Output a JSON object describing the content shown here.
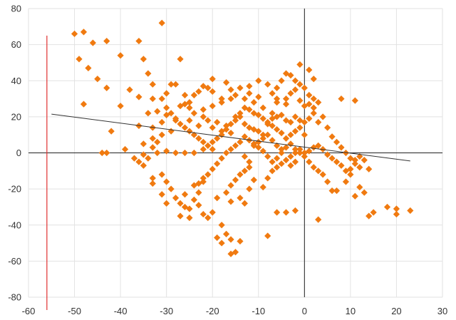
{
  "chart_data": {
    "type": "scatter",
    "title": "",
    "xlabel": "",
    "ylabel": "",
    "xlim": [
      -60,
      30
    ],
    "ylim": [
      -80,
      80
    ],
    "x_ticks": [
      -60,
      -50,
      -40,
      -30,
      -20,
      -10,
      0,
      10,
      20,
      30
    ],
    "y_ticks": [
      -80,
      -60,
      -40,
      -20,
      0,
      20,
      40,
      60,
      80
    ],
    "grid": true,
    "legend": "none",
    "colors": {
      "marker": "#F07A10",
      "trendline": "#333333",
      "axis": "#222222",
      "vertical_line": "#E03030",
      "grid": "#E2E2E2"
    },
    "vertical_line_x": -56,
    "trendline": {
      "x": [
        -55,
        23
      ],
      "y": [
        21.5,
        -4.5
      ]
    },
    "series": [
      {
        "marker": "diamond",
        "points": [
          [
            -50,
            66
          ],
          [
            -48,
            67
          ],
          [
            -46,
            61
          ],
          [
            -49,
            52
          ],
          [
            -47,
            47
          ],
          [
            -45,
            41
          ],
          [
            -43,
            62
          ],
          [
            -43,
            36
          ],
          [
            -48,
            27
          ],
          [
            -40,
            54
          ],
          [
            -36,
            62
          ],
          [
            -35,
            52
          ],
          [
            -33,
            38
          ],
          [
            -34,
            44
          ],
          [
            -31,
            72
          ],
          [
            -27,
            52
          ],
          [
            -38,
            35
          ],
          [
            -36,
            31
          ],
          [
            -33,
            30
          ],
          [
            -40,
            26
          ],
          [
            -42,
            12
          ],
          [
            -39,
            2
          ],
          [
            -37,
            -3
          ],
          [
            -44,
            0
          ],
          [
            -43,
            0
          ],
          [
            -36,
            15
          ],
          [
            -34,
            22
          ],
          [
            -33,
            14
          ],
          [
            -30,
            25
          ],
          [
            -32,
            23
          ],
          [
            -31,
            30
          ],
          [
            -29,
            38
          ],
          [
            -28,
            38
          ],
          [
            -30,
            33
          ],
          [
            -26,
            32
          ],
          [
            -25,
            25
          ],
          [
            -28,
            18
          ],
          [
            -29,
            12
          ],
          [
            -31,
            10
          ],
          [
            -33,
            8
          ],
          [
            -35,
            5
          ],
          [
            -32,
            0
          ],
          [
            -30,
            1
          ],
          [
            -28,
            0
          ],
          [
            -26,
            0
          ],
          [
            -24,
            0
          ],
          [
            -22,
            2
          ],
          [
            -20,
            2
          ],
          [
            -35,
            -7
          ],
          [
            -33,
            -14
          ],
          [
            -33,
            -17
          ],
          [
            -31,
            -12
          ],
          [
            -30,
            -16
          ],
          [
            -29,
            -20
          ],
          [
            -28,
            -25
          ],
          [
            -27,
            -28
          ],
          [
            -26,
            -30
          ],
          [
            -27,
            -35
          ],
          [
            -25,
            -36
          ],
          [
            -26,
            -23
          ],
          [
            -24,
            -18
          ],
          [
            -23,
            -22
          ],
          [
            -22,
            -16
          ],
          [
            -30,
            -28
          ],
          [
            -31,
            -23
          ],
          [
            -25,
            18
          ],
          [
            -23,
            15
          ],
          [
            -22,
            20
          ],
          [
            -21,
            18
          ],
          [
            -20,
            14
          ],
          [
            -19,
            17
          ],
          [
            -18,
            12
          ],
          [
            -17,
            15
          ],
          [
            -16,
            11
          ],
          [
            -15,
            18
          ],
          [
            -14,
            20
          ],
          [
            -13,
            16
          ],
          [
            -12,
            14
          ],
          [
            -11,
            13
          ],
          [
            -10,
            12
          ],
          [
            -9,
            10
          ],
          [
            -8,
            16
          ],
          [
            -7,
            19
          ],
          [
            -6,
            20
          ],
          [
            -5,
            21
          ],
          [
            -4,
            18
          ],
          [
            -3,
            17
          ],
          [
            -2,
            20
          ],
          [
            -1,
            18
          ],
          [
            0,
            17
          ],
          [
            1,
            19
          ],
          [
            2,
            25
          ],
          [
            3,
            28
          ],
          [
            1,
            32
          ],
          [
            0,
            36
          ],
          [
            -1,
            38
          ],
          [
            -2,
            40
          ],
          [
            -3,
            43
          ],
          [
            -4,
            44
          ],
          [
            -5,
            40
          ],
          [
            -6,
            36
          ],
          [
            -7,
            33
          ],
          [
            -8,
            38
          ],
          [
            -10,
            40
          ],
          [
            -12,
            37
          ],
          [
            -14,
            36
          ],
          [
            -16,
            35
          ],
          [
            -18,
            30
          ],
          [
            -20,
            34
          ],
          [
            -21,
            36
          ],
          [
            -22,
            37
          ],
          [
            -23,
            34
          ],
          [
            -24,
            32
          ],
          [
            -25,
            28
          ],
          [
            -26,
            27
          ],
          [
            -27,
            26
          ],
          [
            -20,
            41
          ],
          [
            -17,
            39
          ],
          [
            -15,
            32
          ],
          [
            -13,
            30
          ],
          [
            -11,
            28
          ],
          [
            -9,
            25
          ],
          [
            -7,
            22
          ],
          [
            -6,
            30
          ],
          [
            -4,
            27
          ],
          [
            -3,
            33
          ],
          [
            -1,
            29
          ],
          [
            0,
            26
          ],
          [
            1,
            27
          ],
          [
            2,
            30
          ],
          [
            2,
            22
          ],
          [
            3,
            17
          ],
          [
            4,
            20
          ],
          [
            5,
            14
          ],
          [
            6,
            9
          ],
          [
            7,
            6
          ],
          [
            8,
            3
          ],
          [
            9,
            0
          ],
          [
            10,
            -3
          ],
          [
            11,
            -6
          ],
          [
            12,
            -8
          ],
          [
            13,
            -4
          ],
          [
            14,
            -9
          ],
          [
            15,
            -33
          ],
          [
            14,
            -35
          ],
          [
            18,
            -30
          ],
          [
            20,
            -31
          ],
          [
            20,
            -34
          ],
          [
            23,
            -32
          ],
          [
            11,
            -24
          ],
          [
            12,
            -19
          ],
          [
            13,
            -22
          ],
          [
            6,
            -21
          ],
          [
            5,
            -16
          ],
          [
            4,
            -12
          ],
          [
            3,
            -10
          ],
          [
            2,
            -8
          ],
          [
            1,
            -5
          ],
          [
            0,
            -2
          ],
          [
            -1,
            0
          ],
          [
            -2,
            2
          ],
          [
            -3,
            5
          ],
          [
            -4,
            3
          ],
          [
            -5,
            0
          ],
          [
            -6,
            -3
          ],
          [
            -7,
            -5
          ],
          [
            -8,
            -2
          ],
          [
            -9,
            1
          ],
          [
            -10,
            3
          ],
          [
            -11,
            5
          ],
          [
            -12,
            7
          ],
          [
            -13,
            9
          ],
          [
            -14,
            6
          ],
          [
            -15,
            4
          ],
          [
            -16,
            2
          ],
          [
            -17,
            0
          ],
          [
            -18,
            -3
          ],
          [
            -19,
            -6
          ],
          [
            -20,
            -9
          ],
          [
            -21,
            -12
          ],
          [
            -22,
            -14
          ],
          [
            -23,
            -17
          ],
          [
            -18,
            -40
          ],
          [
            -17,
            -45
          ],
          [
            -16,
            -48
          ],
          [
            -15,
            -55
          ],
          [
            -16,
            -56
          ],
          [
            -14,
            -49
          ],
          [
            -18,
            -50
          ],
          [
            -19,
            -47
          ],
          [
            -21,
            -36
          ],
          [
            -22,
            -34
          ],
          [
            -8,
            -46
          ],
          [
            -6,
            -33
          ],
          [
            -4,
            -33
          ],
          [
            -2,
            -32
          ],
          [
            3,
            -37
          ],
          [
            -9,
            -19
          ],
          [
            -8,
            -14
          ],
          [
            -7,
            -10
          ],
          [
            -6,
            -8
          ],
          [
            -5,
            -6
          ],
          [
            -4,
            -4
          ],
          [
            -3,
            -2
          ],
          [
            -2,
            0
          ],
          [
            -1,
            2
          ],
          [
            0,
            0
          ],
          [
            1,
            1
          ],
          [
            2,
            3
          ],
          [
            3,
            4
          ],
          [
            4,
            2
          ],
          [
            5,
            -1
          ],
          [
            6,
            -3
          ],
          [
            7,
            -5
          ],
          [
            8,
            -7
          ],
          [
            9,
            -10
          ],
          [
            10,
            -12
          ],
          [
            -11,
            -15
          ],
          [
            -12,
            -20
          ],
          [
            -13,
            -28
          ],
          [
            -14,
            -25
          ],
          [
            -12,
            -8
          ],
          [
            -13,
            -2
          ],
          [
            -11,
            4
          ],
          [
            -10,
            6
          ],
          [
            -9,
            8
          ],
          [
            -8,
            10
          ],
          [
            -7,
            7
          ],
          [
            -6,
            4
          ],
          [
            -5,
            2
          ],
          [
            -2,
            -5
          ],
          [
            -3,
            -7
          ],
          [
            0,
            10
          ],
          [
            -1,
            14
          ],
          [
            -2,
            12
          ],
          [
            -3,
            10
          ],
          [
            -4,
            8
          ],
          [
            -5,
            11
          ],
          [
            -6,
            13
          ],
          [
            -7,
            15
          ],
          [
            -8,
            17
          ],
          [
            -9,
            19
          ],
          [
            -10,
            21
          ],
          [
            -11,
            22
          ],
          [
            -12,
            24
          ],
          [
            -13,
            25
          ],
          [
            -14,
            22
          ],
          [
            -15,
            20
          ],
          [
            -16,
            16
          ],
          [
            -17,
            13
          ],
          [
            -18,
            10
          ],
          [
            -19,
            8
          ],
          [
            -20,
            6
          ],
          [
            -21,
            4
          ],
          [
            -22,
            6
          ],
          [
            -23,
            8
          ],
          [
            -24,
            10
          ],
          [
            -25,
            12
          ],
          [
            -26,
            14
          ],
          [
            -27,
            16
          ],
          [
            -28,
            19
          ],
          [
            -29,
            22
          ],
          [
            -30,
            21
          ],
          [
            -31,
            17
          ],
          [
            -32,
            6
          ],
          [
            -33,
            3
          ],
          [
            -34,
            -3
          ],
          [
            -35,
            -1
          ],
          [
            -36,
            -5
          ],
          [
            -24,
            -26
          ],
          [
            -25,
            -31
          ],
          [
            -23,
            -29
          ],
          [
            -20,
            -33
          ],
          [
            -19,
            -25
          ],
          [
            -17,
            -22
          ],
          [
            -16,
            -18
          ],
          [
            -15,
            -15
          ],
          [
            -14,
            -12
          ],
          [
            -13,
            -10
          ],
          [
            -12,
            -5
          ],
          [
            -16,
            -27
          ],
          [
            7,
            -21
          ],
          [
            9,
            -16
          ],
          [
            10,
            -9
          ],
          [
            11,
            -4
          ],
          [
            12,
            -2
          ],
          [
            8,
            30
          ],
          [
            11,
            29
          ],
          [
            2,
            41
          ],
          [
            1,
            46
          ],
          [
            -1,
            49
          ],
          [
            -2,
            35
          ],
          [
            -4,
            30
          ],
          [
            -6,
            28
          ],
          [
            -10,
            31
          ],
          [
            -12,
            33
          ],
          [
            -16,
            30
          ],
          [
            -18,
            28
          ],
          [
            -20,
            26
          ],
          [
            -22,
            24
          ],
          [
            -24,
            22
          ]
        ]
      }
    ]
  }
}
